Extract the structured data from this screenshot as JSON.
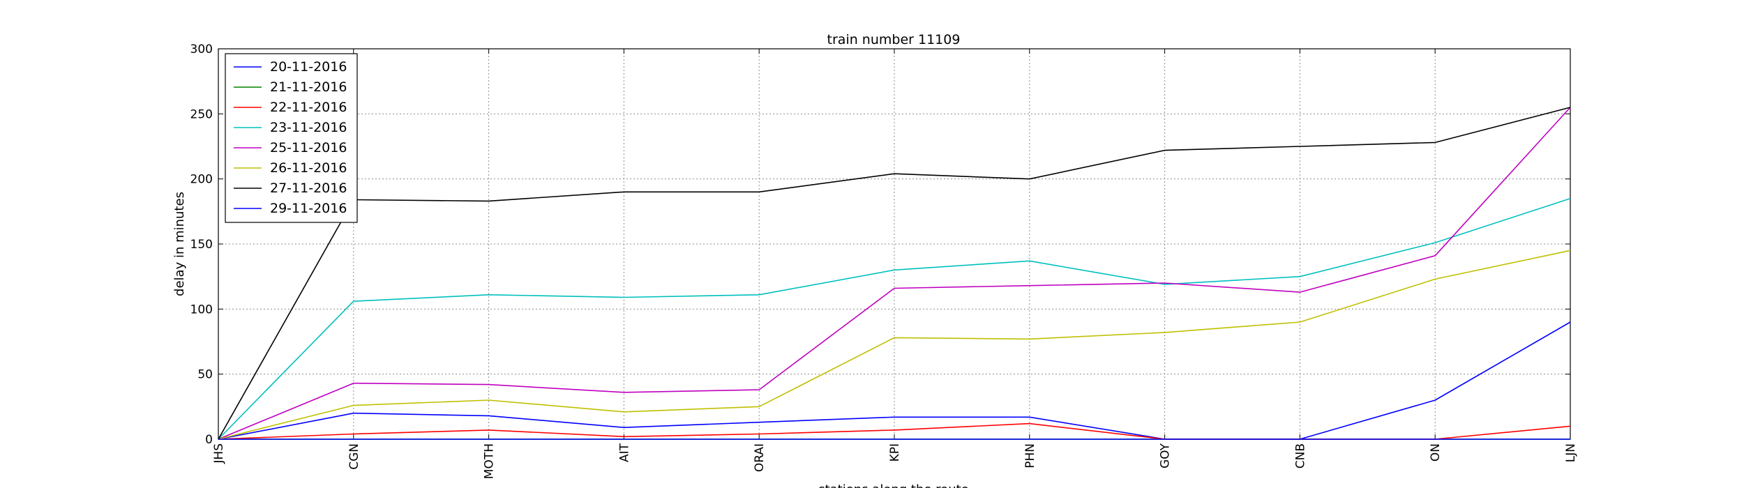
{
  "chart_data": {
    "type": "line",
    "title": "train number 11109",
    "xlabel": "stations along the route",
    "ylabel": "delay in minutes",
    "categories": [
      "JHS",
      "CGN",
      "MOTH",
      "AIT",
      "ORAI",
      "KPI",
      "PHN",
      "GOY",
      "CNB",
      "ON",
      "LJN"
    ],
    "ylim": [
      0,
      300
    ],
    "yticks": [
      "0",
      "50",
      "100",
      "150",
      "200",
      "250",
      "300"
    ],
    "grid": true,
    "legend_position": "top-left",
    "series": [
      {
        "name": "20-11-2016",
        "color": "#0000ff",
        "values": [
          0,
          20,
          18,
          9,
          13,
          17,
          17,
          0,
          0,
          30,
          90
        ]
      },
      {
        "name": "21-11-2016",
        "color": "#008000",
        "values": [
          0,
          0,
          0,
          0,
          0,
          0,
          0,
          0,
          0,
          0,
          0
        ]
      },
      {
        "name": "22-11-2016",
        "color": "#ff0000",
        "values": [
          0,
          4,
          7,
          2,
          4,
          7,
          12,
          0,
          0,
          0,
          10
        ]
      },
      {
        "name": "23-11-2016",
        "color": "#00bfbf",
        "values": [
          0,
          106,
          111,
          109,
          111,
          130,
          137,
          119,
          125,
          151,
          185
        ]
      },
      {
        "name": "25-11-2016",
        "color": "#bf00bf",
        "values": [
          0,
          43,
          42,
          36,
          38,
          116,
          118,
          120,
          113,
          141,
          255
        ]
      },
      {
        "name": "26-11-2016",
        "color": "#bfbf00",
        "values": [
          0,
          26,
          30,
          21,
          25,
          78,
          77,
          82,
          90,
          123,
          145
        ]
      },
      {
        "name": "27-11-2016",
        "color": "#000000",
        "values": [
          0,
          184,
          183,
          190,
          190,
          204,
          200,
          222,
          225,
          228,
          255
        ]
      },
      {
        "name": "29-11-2016",
        "color": "#0000ff",
        "values": [
          0,
          0,
          0,
          0,
          0,
          0,
          0,
          0,
          0,
          0,
          0
        ]
      }
    ]
  }
}
